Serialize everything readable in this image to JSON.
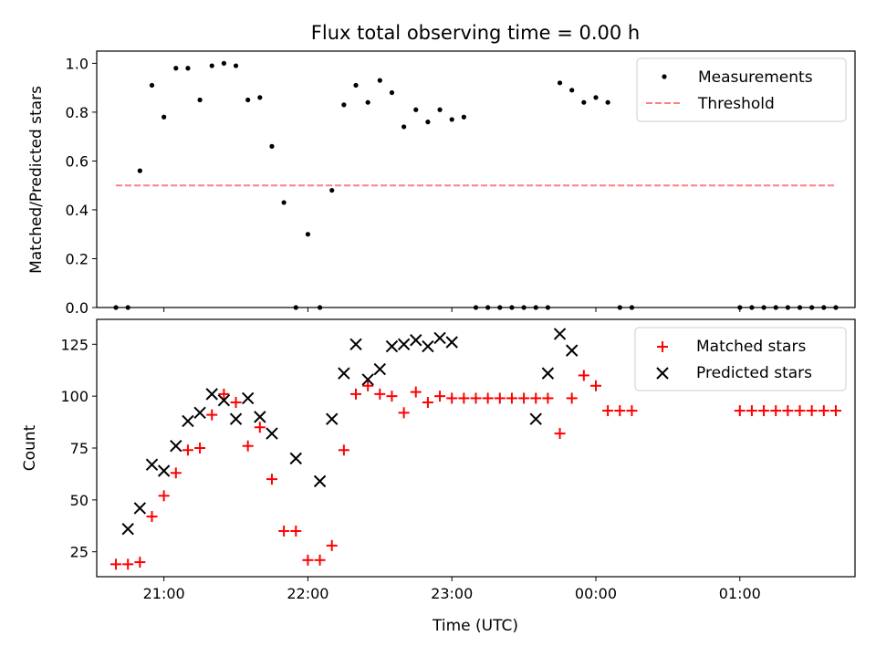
{
  "title": "Flux total observing time = 0.00 h",
  "colors": {
    "measurements": "#000000",
    "threshold": "#ff7f7f",
    "matched": "#ff0000",
    "predicted": "#000000"
  },
  "chart_data": [
    {
      "type": "scatter",
      "title": "Flux total observing time = 0.00 h",
      "xlabel": "",
      "ylabel": "Matched/Predicted stars",
      "xlim": [
        "20:32",
        "01:48"
      ],
      "ylim": [
        0,
        1.05
      ],
      "yticks": [
        "0.0",
        "0.2",
        "0.4",
        "0.6",
        "0.8",
        "1.0"
      ],
      "xticks": [
        "21:00",
        "22:00",
        "23:00",
        "00:00",
        "01:00"
      ],
      "legend": "top-right",
      "series": [
        {
          "name": "Measurements",
          "marker": "dot",
          "x": [
            "20:40",
            "20:45",
            "20:50",
            "20:55",
            "21:00",
            "21:05",
            "21:10",
            "21:15",
            "21:20",
            "21:25",
            "21:30",
            "21:35",
            "21:40",
            "21:45",
            "21:50",
            "21:55",
            "22:00",
            "22:05",
            "22:10",
            "22:15",
            "22:20",
            "22:25",
            "22:30",
            "22:35",
            "22:40",
            "22:45",
            "22:50",
            "22:55",
            "23:00",
            "23:05",
            "23:10",
            "23:15",
            "23:20",
            "23:25",
            "23:30",
            "23:35",
            "23:40",
            "23:45",
            "23:50",
            "23:55",
            "00:00",
            "00:05",
            "00:10",
            "00:15",
            "00:20",
            "00:25",
            "00:30",
            "00:35",
            "00:40",
            "00:45",
            "00:50",
            "00:55",
            "01:00",
            "01:05",
            "01:10",
            "01:15",
            "01:20",
            "01:25",
            "01:30",
            "01:35",
            "01:40"
          ],
          "values": [
            0.0,
            0.0,
            0.56,
            0.91,
            0.78,
            0.98,
            0.98,
            0.85,
            0.99,
            1.0,
            0.99,
            0.85,
            0.86,
            0.66,
            0.43,
            0.0,
            0.3,
            0.0,
            0.48,
            0.83,
            0.91,
            0.84,
            0.93,
            0.88,
            0.74,
            0.81,
            0.76,
            0.81,
            0.77,
            0.78,
            0.0,
            0.0,
            0.0,
            0.0,
            0.0,
            0.0,
            0.0,
            0.92,
            0.89,
            0.84,
            0.86,
            0.84,
            0.0,
            0.0,
            null,
            null,
            null,
            null,
            null,
            null,
            null,
            null,
            0.0,
            0.0,
            0.0,
            0.0,
            0.0,
            0.0,
            0.0,
            0.0,
            0.0
          ]
        },
        {
          "name": "Threshold",
          "marker": "dashed-line",
          "x": [
            "20:40",
            "01:40"
          ],
          "values": [
            0.5,
            0.5
          ]
        }
      ]
    },
    {
      "type": "scatter",
      "title": "",
      "xlabel": "Time (UTC)",
      "ylabel": "Count",
      "xlim": [
        "20:32",
        "01:48"
      ],
      "ylim": [
        13,
        137
      ],
      "yticks": [
        "25",
        "50",
        "75",
        "100",
        "125"
      ],
      "xticks": [
        "21:00",
        "22:00",
        "23:00",
        "00:00",
        "01:00"
      ],
      "legend": "top-right",
      "series": [
        {
          "name": "Matched stars",
          "marker": "plus",
          "x": [
            "20:40",
            "20:45",
            "20:50",
            "20:55",
            "21:00",
            "21:05",
            "21:10",
            "21:15",
            "21:20",
            "21:25",
            "21:30",
            "21:35",
            "21:40",
            "21:45",
            "21:50",
            "21:55",
            "22:00",
            "22:05",
            "22:10",
            "22:15",
            "22:20",
            "22:25",
            "22:30",
            "22:35",
            "22:40",
            "22:45",
            "22:50",
            "22:55",
            "23:00",
            "23:05",
            "23:10",
            "23:15",
            "23:20",
            "23:25",
            "23:30",
            "23:35",
            "23:40",
            "23:45",
            "23:50",
            "23:55",
            "00:00",
            "00:05",
            "00:10",
            "00:15",
            "00:20",
            "00:25",
            "00:30",
            "00:35",
            "00:40",
            "00:45",
            "00:50",
            "00:55",
            "01:00",
            "01:05",
            "01:10",
            "01:15",
            "01:20",
            "01:25",
            "01:30",
            "01:35",
            "01:40"
          ],
          "values": [
            19,
            19,
            20,
            42,
            52,
            63,
            74,
            75,
            91,
            101,
            97,
            76,
            85,
            60,
            35,
            35,
            21,
            21,
            28,
            74,
            101,
            105,
            101,
            100,
            92,
            102,
            97,
            100,
            99,
            99,
            99,
            99,
            99,
            99,
            99,
            99,
            99,
            82,
            99,
            110,
            105,
            93,
            93,
            93,
            null,
            null,
            null,
            null,
            null,
            null,
            null,
            null,
            93,
            93,
            93,
            93,
            93,
            93,
            93,
            93,
            93
          ]
        },
        {
          "name": "Predicted stars",
          "marker": "x",
          "x": [
            "20:45",
            "20:50",
            "20:55",
            "21:00",
            "21:05",
            "21:10",
            "21:15",
            "21:20",
            "21:25",
            "21:30",
            "21:35",
            "21:40",
            "21:45",
            "21:50",
            "21:55",
            "22:00",
            "22:05",
            "22:10",
            "22:15",
            "22:20",
            "22:25",
            "22:30",
            "22:35",
            "22:40",
            "22:45",
            "22:50",
            "22:55",
            "23:00",
            "23:05",
            "23:10",
            "23:15",
            "23:20",
            "23:25",
            "23:30",
            "23:35",
            "23:40",
            "23:45",
            "23:50"
          ],
          "values": [
            36,
            46,
            67,
            64,
            76,
            88,
            92,
            101,
            98,
            89,
            99,
            90,
            82,
            null,
            70,
            null,
            59,
            89,
            111,
            125,
            108,
            113,
            124,
            125,
            127,
            124,
            128,
            126,
            null,
            null,
            null,
            null,
            null,
            null,
            89,
            111,
            130,
            122
          ]
        }
      ]
    }
  ]
}
